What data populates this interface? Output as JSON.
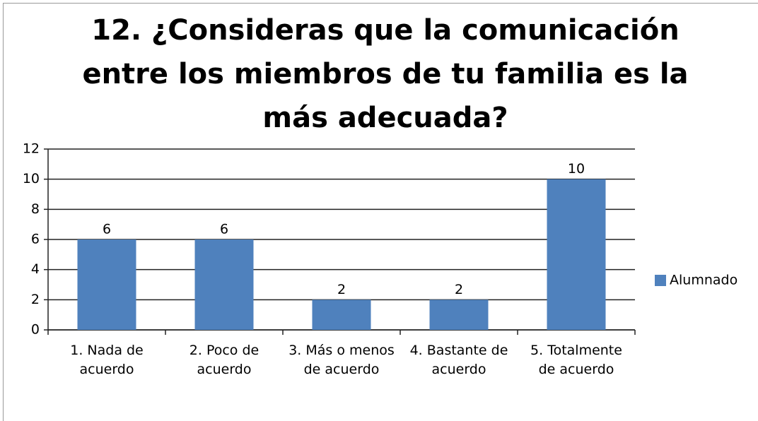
{
  "chart_data": {
    "type": "bar",
    "title": "12. ¿Consideras que la comunicación entre los miembros de tu familia es la más adecuada?",
    "categories": [
      "1. Nada de acuerdo",
      "2. Poco de acuerdo",
      "3. Más o menos de acuerdo",
      "4. Bastante de acuerdo",
      "5. Totalmente de acuerdo"
    ],
    "series": [
      {
        "name": "Alumnado",
        "color": "#4f81bd",
        "values": [
          6,
          6,
          2,
          2,
          10
        ]
      }
    ],
    "ylim": [
      0,
      12
    ],
    "yticks": [
      0,
      2,
      4,
      6,
      8,
      10,
      12
    ],
    "grid": true,
    "legend": "right"
  }
}
